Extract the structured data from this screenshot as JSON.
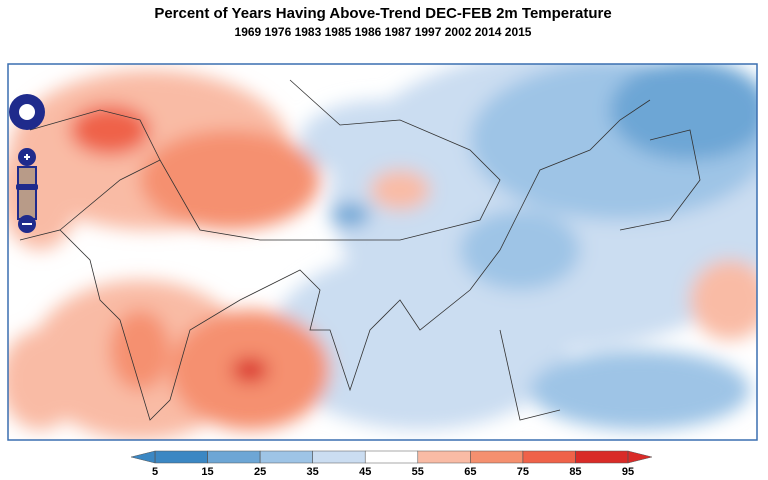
{
  "title": "Percent of Years Having Above-Trend DEC-FEB 2m Temperature",
  "subtitle": "1969 1976 1983 1985 1986 1987 1997 2002 2014 2015",
  "colorbar": {
    "ticks": [
      5,
      15,
      25,
      35,
      45,
      55,
      65,
      75,
      85,
      95
    ],
    "colors": [
      "#3b87c3",
      "#6da6d5",
      "#9ec4e6",
      "#cbddf1",
      "#ffffff",
      "#f9bba5",
      "#f5906f",
      "#ef6249",
      "#d92b28"
    ],
    "extend": "both"
  }
}
